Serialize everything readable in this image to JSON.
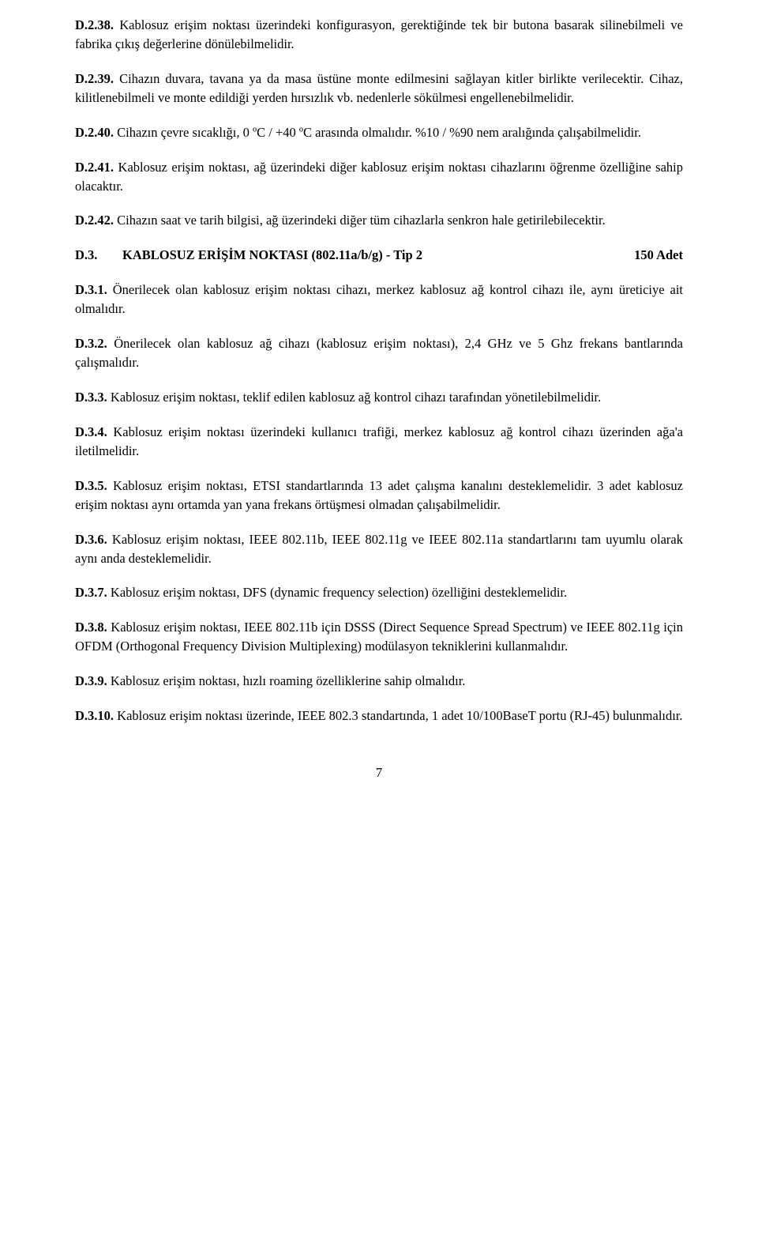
{
  "items": [
    {
      "number": "D.2.38.",
      "text": " Kablosuz erişim noktası üzerindeki konfigurasyon, gerektiğinde tek bir butona basarak silinebilmeli ve fabrika çıkış değerlerine dönülebilmelidir."
    },
    {
      "number": "D.2.39.",
      "text": " Cihazın duvara, tavana ya da masa üstüne monte edilmesini sağlayan kitler birlikte verilecektir. Cihaz, kilitlenebilmeli ve monte edildiği yerden hırsızlık vb. nedenlerle sökülmesi engellenebilmelidir."
    },
    {
      "number": "D.2.40.",
      "text": " Cihazın çevre sıcaklığı, 0 ºC / +40 ºC arasında olmalıdır.  %10 / %90 nem aralığında çalışabilmelidir."
    },
    {
      "number": "D.2.41.",
      "text": " Kablosuz erişim noktası, ağ üzerindeki diğer kablosuz erişim noktası cihazlarını öğrenme özelliğine sahip olacaktır."
    },
    {
      "number": "D.2.42.",
      "text": " Cihazın saat ve tarih bilgisi, ağ üzerindeki diğer tüm cihazlarla senkron hale getirilebilecektir."
    }
  ],
  "section": {
    "prefix": "D.3.",
    "title": "KABLOSUZ ERİŞİM NOKTASI (802.11a/b/g) - Tip 2",
    "right": "150 Adet"
  },
  "items2": [
    {
      "number": "D.3.1.",
      "text": " Önerilecek olan kablosuz erişim noktası cihazı, merkez kablosuz ağ kontrol cihazı ile, aynı üreticiye ait olmalıdır."
    },
    {
      "number": "D.3.2.",
      "text": " Önerilecek olan kablosuz ağ cihazı (kablosuz erişim noktası), 2,4 GHz  ve 5 Ghz frekans bantlarında çalışmalıdır."
    },
    {
      "number": "D.3.3.",
      "text": " Kablosuz erişim noktası, teklif edilen kablosuz ağ kontrol cihazı tarafından yönetilebilmelidir."
    },
    {
      "number": "D.3.4.",
      "text": " Kablosuz erişim noktası üzerindeki kullanıcı trafiği, merkez kablosuz ağ kontrol cihazı üzerinden ağa'a iletilmelidir."
    },
    {
      "number": "D.3.5.",
      "text": " Kablosuz erişim noktası, ETSI standartlarında  13 adet çalışma kanalını desteklemelidir. 3 adet kablosuz erişim noktası aynı ortamda yan yana frekans örtüşmesi olmadan çalışabilmelidir."
    },
    {
      "number": "D.3.6.",
      "text": " Kablosuz erişim noktası, IEEE 802.11b, IEEE 802.11g ve IEEE 802.11a standartlarını  tam uyumlu olarak aynı anda desteklemelidir."
    },
    {
      "number": "D.3.7.",
      "text": " Kablosuz erişim noktası, DFS (dynamic frequency selection) özelliğini desteklemelidir."
    },
    {
      "number": "D.3.8.",
      "text": " Kablosuz erişim noktası, IEEE 802.11b için DSSS (Direct Sequence Spread Spectrum) ve IEEE 802.11g için OFDM (Orthogonal Frequency Division Multiplexing) modülasyon tekniklerini kullanmalıdır."
    },
    {
      "number": "D.3.9.",
      "text": "   Kablosuz erişim noktası, hızlı roaming özelliklerine sahip olmalıdır."
    },
    {
      "number": "D.3.10.",
      "text": " Kablosuz erişim noktası üzerinde, IEEE 802.3 standartında, 1 adet 10/100BaseT portu (RJ-45) bulunmalıdır."
    }
  ],
  "pageNumber": "7"
}
